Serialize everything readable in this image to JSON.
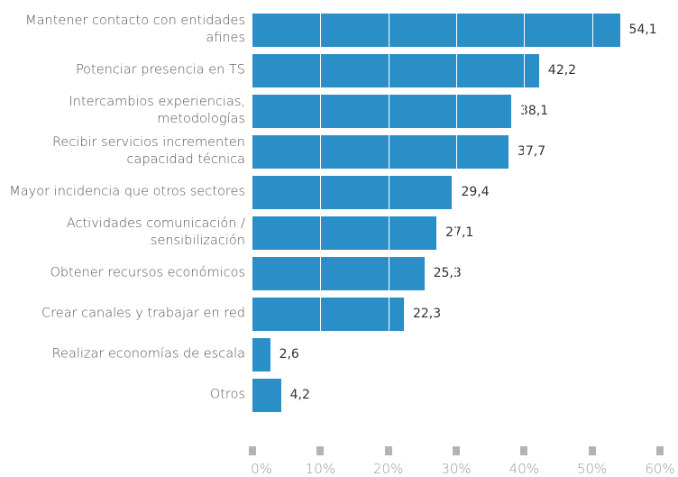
{
  "chart_data": {
    "type": "bar",
    "orientation": "horizontal",
    "categories": [
      "Mantener contacto con entidades afines",
      "Potenciar presencia en TS",
      "Intercambios experiencias, metodologías",
      "Recibir servicios incrementen capacidad técnica",
      "Mayor incidencia que otros sectores",
      "Actividades comunicación / sensibilización",
      "Obtener recursos económicos",
      "Crear canales y trabajar en red",
      "Realizar economías de escala",
      "Otros"
    ],
    "values": [
      54.1,
      42.2,
      38.1,
      37.7,
      29.4,
      27.1,
      25.3,
      22.3,
      2.6,
      4.2
    ],
    "value_labels": [
      "54,1",
      "42,2",
      "38,1",
      "37,7",
      "29,4",
      "27,1",
      "25,3",
      "22,3",
      "2,6",
      "4,2"
    ],
    "color": "#2a8fc6",
    "xlim": [
      0,
      60
    ],
    "xticks": [
      {
        "value": 0,
        "label": "0%"
      },
      {
        "value": 10,
        "label": "10%"
      },
      {
        "value": 20,
        "label": "20%"
      },
      {
        "value": 30,
        "label": "30%"
      },
      {
        "value": 40,
        "label": "40%"
      },
      {
        "value": 50,
        "label": "50%"
      },
      {
        "value": 60,
        "label": "60%"
      }
    ],
    "grid": true
  }
}
